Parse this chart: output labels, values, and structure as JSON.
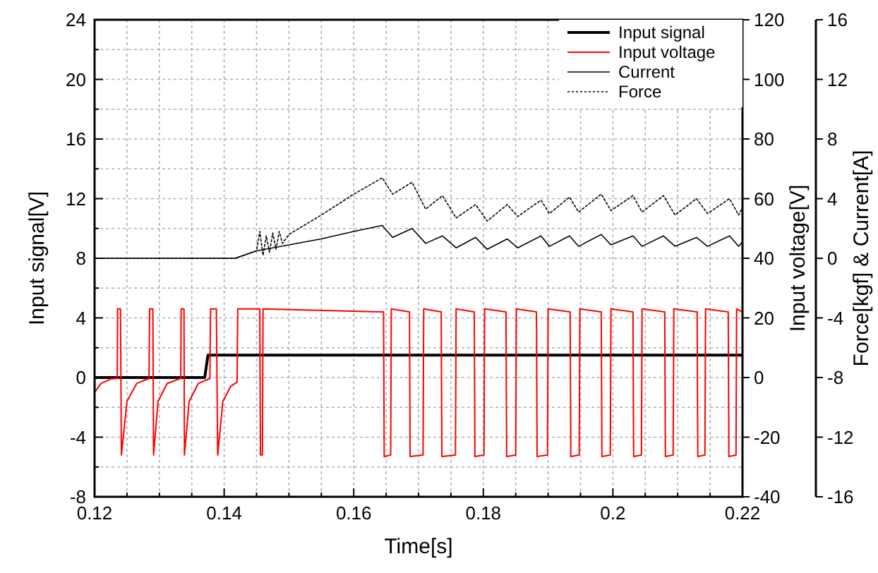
{
  "chart_data": {
    "type": "line",
    "xlabel": "Time[s]",
    "ylabel": "Input signal[V]",
    "y2label": "Input voltage[V]",
    "y3label": "Force[kgf] & Current[A]",
    "xlim": [
      0.12,
      0.22
    ],
    "xticks": [
      0.12,
      {
        "value": 0.125,
        "label": null
      },
      {
        "value": 0.13,
        "label": null
      },
      {
        "value": 0.135,
        "label": null
      },
      0.14,
      {
        "value": 0.145,
        "label": null
      },
      {
        "value": 0.15,
        "label": null
      },
      {
        "value": 0.155,
        "label": null
      },
      0.16,
      {
        "value": 0.165,
        "label": null
      },
      {
        "value": 0.17,
        "label": null
      },
      {
        "value": 0.175,
        "label": null
      },
      0.18,
      {
        "value": 0.185,
        "label": null
      },
      {
        "value": 0.19,
        "label": null
      },
      {
        "value": 0.195,
        "label": null
      },
      0.2,
      {
        "value": 0.205,
        "label": null
      },
      {
        "value": 0.21,
        "label": null
      },
      {
        "value": 0.215,
        "label": null
      },
      0.22
    ],
    "ylim": [
      -8,
      24
    ],
    "yticks": [
      -8,
      {
        "value": -6,
        "label": null
      },
      -4,
      {
        "value": -2,
        "label": null
      },
      0,
      {
        "value": 2,
        "label": null
      },
      4,
      {
        "value": 6,
        "label": null
      },
      8,
      {
        "value": 10,
        "label": null
      },
      12,
      {
        "value": 14,
        "label": null
      },
      16,
      {
        "value": 18,
        "label": null
      },
      20,
      {
        "value": 22,
        "label": null
      },
      24
    ],
    "y2lim": [
      -40,
      120
    ],
    "y2ticks": [
      -40,
      -20,
      0,
      20,
      40,
      60,
      80,
      100,
      120
    ],
    "y3lim": [
      -16,
      16
    ],
    "y3ticks": [
      -16,
      -12,
      -8,
      -4,
      0,
      4,
      8,
      12,
      16
    ],
    "grid": true,
    "legend": "top right",
    "series": [
      {
        "name": "Input signal",
        "color": "#000000",
        "x": [
          0.12,
          0.137,
          0.1375,
          0.22
        ],
        "values": [
          0,
          0,
          1.5,
          1.5
        ]
      },
      {
        "name": "Input voltage",
        "color": "#ff0000",
        "axis": "y2",
        "x": [
          0.12,
          0.121,
          0.1225,
          0.1235,
          0.12356,
          0.124,
          0.12414,
          0.125,
          0.1265,
          0.1284,
          0.1285,
          0.129,
          0.1291,
          0.1298,
          0.1312,
          0.1333,
          0.13336,
          0.1338,
          0.13387,
          0.1346,
          0.136,
          0.1378,
          0.1379,
          0.1388,
          0.139,
          0.1398,
          0.141,
          0.142,
          0.1421,
          0.1455,
          0.1456,
          0.1459,
          0.146,
          0.1646,
          0.1647,
          0.1657,
          0.1658,
          0.1686,
          0.1687,
          0.1707,
          0.1708,
          0.1735,
          0.1736,
          0.1757,
          0.1758,
          0.1786,
          0.1787,
          0.1801,
          0.1802,
          0.1835,
          0.1836,
          0.185,
          0.1851,
          0.1882,
          0.1883,
          0.1899,
          0.19,
          0.1934,
          0.1935,
          0.1948,
          0.1949,
          0.1982,
          0.1983,
          0.1996,
          0.1997,
          0.2031,
          0.2032,
          0.2044,
          0.2045,
          0.208,
          0.2081,
          0.2093,
          0.2094,
          0.213,
          0.2131,
          0.2142,
          0.2143,
          0.2178,
          0.2179,
          0.219,
          0.2191,
          0.22
        ],
        "values": [
          -5,
          -2,
          -0.5,
          -0.3,
          23,
          23,
          -26,
          -8,
          -2,
          -0.3,
          23,
          23,
          -26,
          -8,
          -2,
          -0.3,
          23,
          23,
          -26,
          -8,
          -2,
          -0.3,
          23,
          23,
          -26,
          -8,
          -3,
          -1.5,
          23,
          23,
          -26,
          -26,
          23,
          22,
          -26.5,
          -26,
          23,
          22,
          -26.5,
          -26,
          23,
          22,
          -26.5,
          -26,
          23,
          22,
          -26.5,
          -26,
          23,
          22,
          -26.5,
          -26,
          23,
          22,
          -26.5,
          -26,
          23,
          22,
          -26.5,
          -26,
          23,
          22,
          -26.5,
          -26,
          23,
          22,
          -26.5,
          -26,
          23,
          22,
          -26.5,
          -26,
          23,
          22,
          -26.5,
          -26,
          23,
          22,
          -26.5,
          -26,
          23,
          22
        ]
      },
      {
        "name": "Current",
        "color": "#000000",
        "axis": "y3",
        "x": [
          0.12,
          0.1417,
          0.145,
          0.15,
          0.155,
          0.16,
          0.1644,
          0.166,
          0.169,
          0.1711,
          0.1737,
          0.1758,
          0.1788,
          0.1806,
          0.1837,
          0.1853,
          0.1889,
          0.1902,
          0.1933,
          0.1947,
          0.1982,
          0.1997,
          0.2031,
          0.2045,
          0.2078,
          0.2096,
          0.2129,
          0.2146,
          0.218,
          0.2194,
          0.22
        ],
        "values": [
          0,
          0,
          0.5,
          0.9,
          1.3,
          1.8,
          2.2,
          1.4,
          2.0,
          1.0,
          1.5,
          0.7,
          1.4,
          0.6,
          1.3,
          0.7,
          1.5,
          0.8,
          1.5,
          0.8,
          1.6,
          0.9,
          1.5,
          0.8,
          1.5,
          0.8,
          1.4,
          0.8,
          1.5,
          0.8,
          1.1
        ]
      },
      {
        "name": "Force",
        "color": "#000000",
        "axis": "y3",
        "line_style": "dotted",
        "x": [
          0.12,
          0.13,
          0.1417,
          0.145,
          0.1455,
          0.146,
          0.1465,
          0.147,
          0.1475,
          0.148,
          0.1485,
          0.149,
          0.15,
          0.155,
          0.16,
          0.1644,
          0.166,
          0.169,
          0.1711,
          0.1737,
          0.1758,
          0.1788,
          0.1806,
          0.1837,
          0.1853,
          0.1889,
          0.1902,
          0.1933,
          0.1947,
          0.1982,
          0.1997,
          0.2031,
          0.2045,
          0.2078,
          0.2096,
          0.2129,
          0.2146,
          0.218,
          0.2194,
          0.22
        ],
        "values": [
          0,
          0,
          0,
          0.5,
          1.8,
          0.2,
          1.5,
          0.4,
          1.7,
          0.6,
          1.8,
          1.0,
          1.6,
          2.9,
          4.3,
          5.4,
          4.3,
          5.1,
          3.3,
          4.2,
          2.7,
          3.6,
          2.5,
          3.6,
          2.8,
          3.9,
          3.0,
          4.1,
          3.1,
          4.3,
          3.2,
          4.2,
          3.1,
          4.2,
          2.9,
          4.0,
          3.0,
          4.0,
          2.9,
          3.4
        ]
      }
    ]
  }
}
